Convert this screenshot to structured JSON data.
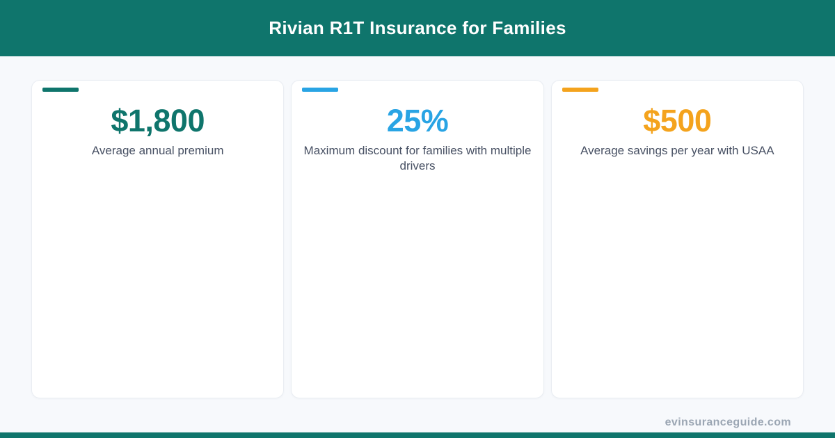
{
  "header": {
    "title": "Rivian R1T Insurance for Families"
  },
  "stats": [
    {
      "value": "$1,800",
      "label": "Average annual premium",
      "accent_color": "#0F756C"
    },
    {
      "value": "25%",
      "label": "Maximum discount for families with multiple drivers",
      "accent_color": "#29A4E4"
    },
    {
      "value": "$500",
      "label": "Average savings per year with USAA",
      "accent_color": "#F4A31D"
    }
  ],
  "footer": {
    "watermark": "evinsuranceguide.com"
  },
  "colors": {
    "header_bg": "#0F756C",
    "page_bg": "#F7F9FC",
    "card_bg": "#FFFFFF",
    "card_border": "#E9EDF2",
    "label_text": "#475063",
    "watermark_text": "#9BA6B3",
    "teal": "#0F756C",
    "blue": "#29A4E4",
    "orange": "#F4A31D"
  },
  "chart_data": {
    "type": "table",
    "title": "Rivian R1T Insurance for Families",
    "categories": [
      "Average annual premium",
      "Maximum discount for families with multiple drivers",
      "Average savings per year with USAA"
    ],
    "values": [
      1800,
      25,
      500
    ],
    "value_labels": [
      "$1,800",
      "25%",
      "$500"
    ],
    "units": [
      "USD",
      "%",
      "USD"
    ]
  }
}
